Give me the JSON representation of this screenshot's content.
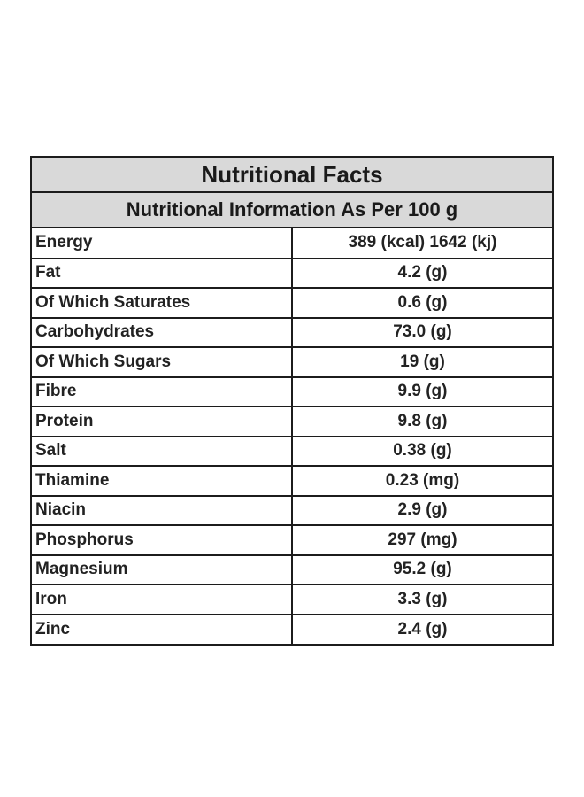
{
  "label": {
    "title": "Nutritional Facts",
    "subtitle": "Nutritional Information As Per 100 g",
    "rows": [
      {
        "name": "Energy",
        "value": "389 (kcal) 1642 (kj)"
      },
      {
        "name": "Fat",
        "value": "4.2 (g)"
      },
      {
        "name": "Of Which Saturates",
        "value": "0.6 (g)"
      },
      {
        "name": "Carbohydrates",
        "value": "73.0 (g)"
      },
      {
        "name": "Of Which Sugars",
        "value": "19 (g)"
      },
      {
        "name": "Fibre",
        "value": "9.9 (g)"
      },
      {
        "name": "Protein",
        "value": "9.8 (g)"
      },
      {
        "name": "Salt",
        "value": "0.38 (g)"
      },
      {
        "name": "Thiamine",
        "value": "0.23 (mg)"
      },
      {
        "name": "Niacin",
        "value": "2.9 (g)"
      },
      {
        "name": "Phosphorus",
        "value": "297 (mg)"
      },
      {
        "name": "Magnesium",
        "value": "95.2 (g)"
      },
      {
        "name": "Iron",
        "value": "3.3 (g)"
      },
      {
        "name": "Zinc",
        "value": "2.4 (g)"
      }
    ]
  }
}
